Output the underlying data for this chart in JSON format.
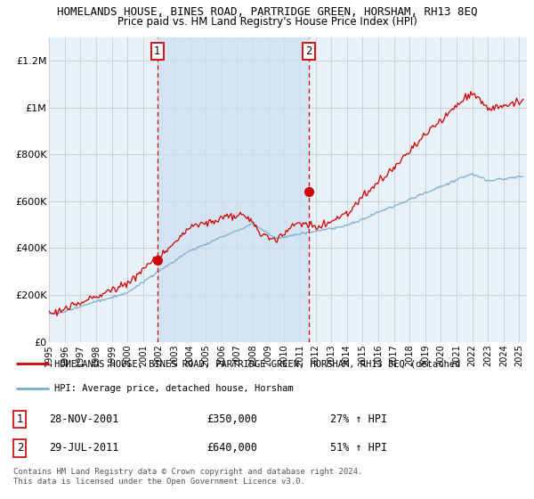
{
  "title": "HOMELANDS HOUSE, BINES ROAD, PARTRIDGE GREEN, HORSHAM, RH13 8EQ",
  "subtitle": "Price paid vs. HM Land Registry's House Price Index (HPI)",
  "ylabel_ticks": [
    "£0",
    "£200K",
    "£400K",
    "£600K",
    "£800K",
    "£1M",
    "£1.2M"
  ],
  "ytick_values": [
    0,
    200000,
    400000,
    600000,
    800000,
    1000000,
    1200000
  ],
  "ylim": [
    0,
    1300000
  ],
  "xlim_start": 1995.0,
  "xlim_end": 2025.5,
  "red_color": "#cc0000",
  "blue_color": "#7aadcf",
  "shade_color": "#ddeeff",
  "background_color": "#e8f0f8",
  "purchase1_year": 2001.91,
  "purchase1_price": 350000,
  "purchase2_year": 2011.57,
  "purchase2_price": 640000,
  "legend1_text": "HOMELANDS HOUSE, BINES ROAD, PARTRIDGE GREEN, HORSHAM, RH13 8EQ (detached",
  "legend2_text": "HPI: Average price, detached house, Horsham",
  "footer": "Contains HM Land Registry data © Crown copyright and database right 2024.\nThis data is licensed under the Open Government Licence v3.0.",
  "xtick_years": [
    1995,
    1996,
    1997,
    1998,
    1999,
    2000,
    2001,
    2002,
    2003,
    2004,
    2005,
    2006,
    2007,
    2008,
    2009,
    2010,
    2011,
    2012,
    2013,
    2014,
    2015,
    2016,
    2017,
    2018,
    2019,
    2020,
    2021,
    2022,
    2023,
    2024,
    2025
  ]
}
